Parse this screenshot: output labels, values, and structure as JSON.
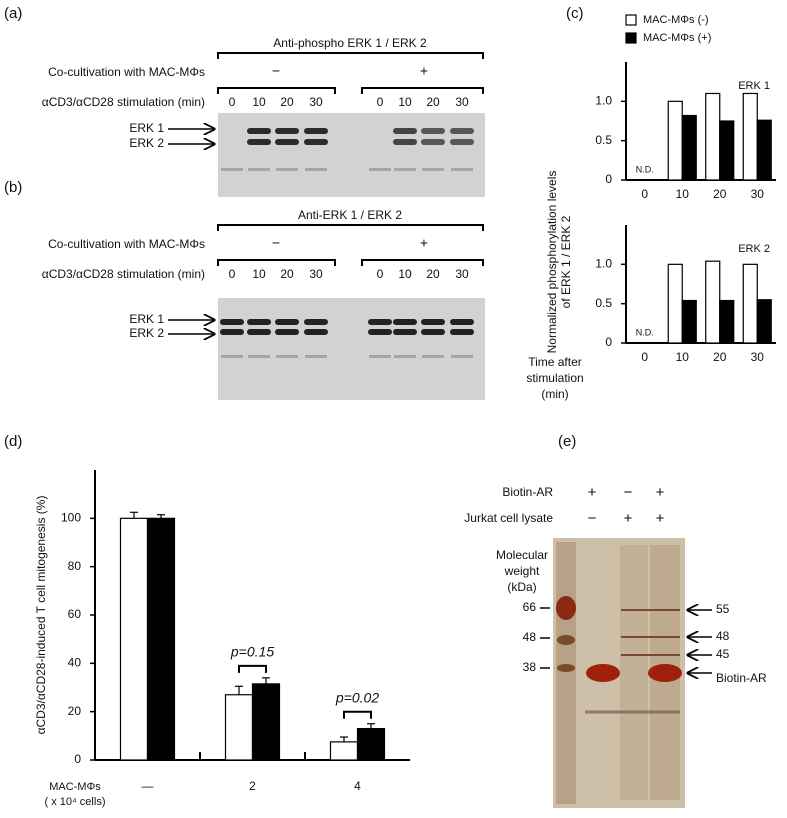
{
  "panel_labels": [
    "(a)",
    "(b)",
    "(c)",
    "(d)",
    "(e)"
  ],
  "panel_a": {
    "title": "Anti-phospho ERK 1 / ERK 2",
    "cocultivation": "Co-cultivation with MAC-MΦs",
    "groups": [
      "−",
      "+"
    ],
    "stimulation": "αCD3/αCD28 stimulation (min)",
    "lanes": [
      "0",
      "10",
      "20",
      "30",
      "0",
      "10",
      "20",
      "30"
    ],
    "bands": [
      "ERK 1",
      "ERK 2"
    ]
  },
  "panel_b": {
    "title": "Anti-ERK 1 / ERK 2",
    "cocultivation": "Co-cultivation with MAC-MΦs",
    "groups": [
      "−",
      "+"
    ],
    "stimulation": "αCD3/αCD28 stimulation (min)",
    "lanes": [
      "0",
      "10",
      "20",
      "30",
      "0",
      "10",
      "20",
      "30"
    ],
    "bands": [
      "ERK 1",
      "ERK 2"
    ]
  },
  "panel_e": {
    "rows": [
      {
        "label": "Biotin-AR",
        "lanes": [
          "+",
          "−",
          "+"
        ]
      },
      {
        "label": "Jurkat cell lysate",
        "lanes": [
          "−",
          "+",
          "+"
        ]
      }
    ],
    "marker_title": [
      "Molecular",
      "weight",
      "(kDa)"
    ],
    "markers": [
      "66",
      "48",
      "38"
    ],
    "bands": [
      "55",
      "48",
      "45",
      "Biotin-AR"
    ]
  },
  "chart_data": [
    {
      "type": "bar",
      "title": "ERK 1",
      "ylabel": [
        "Normalized phosphorylation levels",
        "of ERK 1 / ERK 2"
      ],
      "categories": [
        "0",
        "10",
        "20",
        "30"
      ],
      "series": [
        {
          "name": "MAC-MΦs (-)",
          "color": "#ffffff",
          "values": [
            null,
            1.0,
            1.1,
            1.1
          ]
        },
        {
          "name": "MAC-MΦs (+)",
          "color": "#000000",
          "values": [
            null,
            0.82,
            0.75,
            0.76
          ]
        }
      ],
      "annotations": [
        "N.D."
      ],
      "ylim": [
        0,
        1.5
      ],
      "yticks": [
        0,
        0.5,
        {
          "value": 1,
          "label": "1.0"
        }
      ]
    },
    {
      "type": "bar",
      "title": "ERK 2",
      "xlabel": [
        "Time after",
        "stimulation",
        "(min)"
      ],
      "categories": [
        "0",
        "10",
        "20",
        "30"
      ],
      "series": [
        {
          "color": "#ffffff",
          "values": [
            null,
            1.0,
            1.04,
            1.0
          ]
        },
        {
          "color": "#000000",
          "values": [
            null,
            0.54,
            0.54,
            0.55
          ]
        }
      ],
      "annotations": [
        "N.D."
      ],
      "ylim": [
        0,
        1.5
      ],
      "yticks": [
        0,
        0.5,
        {
          "value": 1,
          "label": "1.0"
        }
      ]
    },
    {
      "type": "bar",
      "ylabel": "αCD3/αCD28-induced T cell mitogenesis (%)",
      "xlabel": [
        "MAC-MΦs",
        "( x 10⁴ cells)"
      ],
      "categories": [
        "—",
        "2",
        "4"
      ],
      "series": [
        {
          "color": "#ffffff",
          "values": [
            100,
            27,
            7.5
          ],
          "errors": [
            2.5,
            3.5,
            2
          ]
        },
        {
          "color": "#000000",
          "values": [
            100,
            31.5,
            13
          ],
          "errors": [
            1.5,
            2.5,
            2
          ]
        }
      ],
      "annotations": [
        "p=0.15",
        "p=0.02"
      ],
      "ylim": [
        0,
        120
      ],
      "yticks": [
        0,
        20,
        40,
        60,
        80,
        100
      ]
    }
  ]
}
